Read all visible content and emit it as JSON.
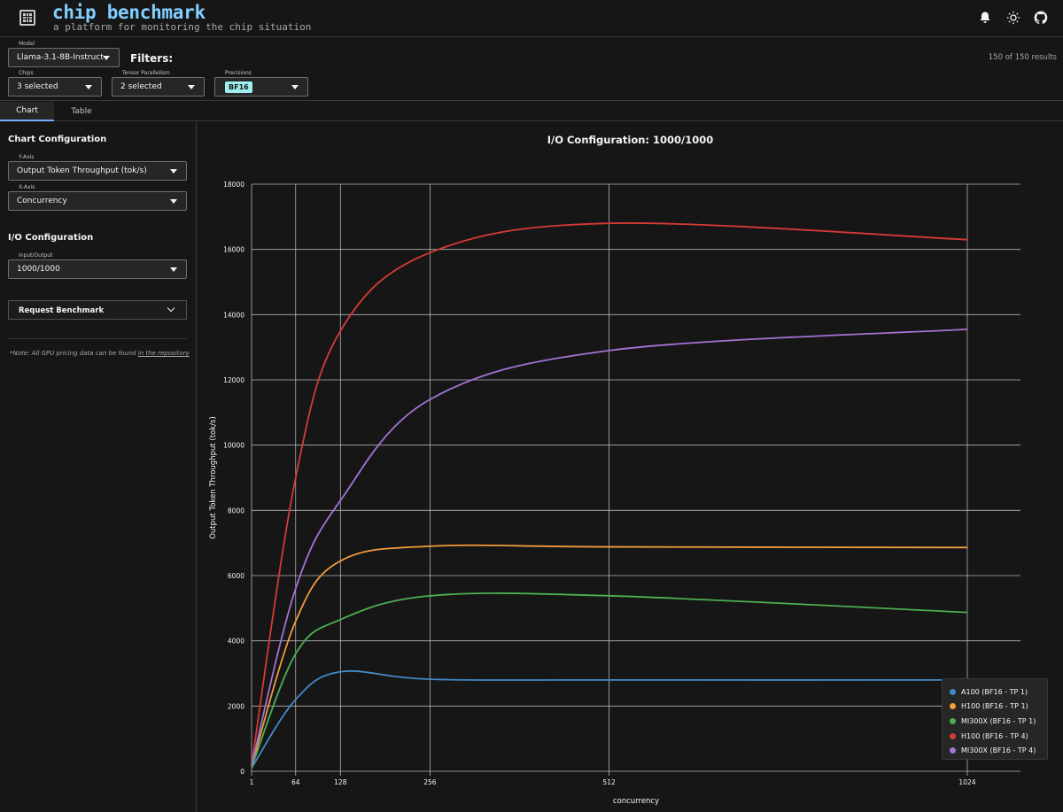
{
  "header": {
    "title": "chip benchmark",
    "subtitle": "a platform for monitoring the chip situation",
    "logo_icon": "chip-grid-icon",
    "icons": [
      "bell-icon",
      "sun-icon",
      "github-icon"
    ]
  },
  "filters": {
    "model": {
      "label": "Model",
      "value": "Llama-3.1-8B-Instruct"
    },
    "title": "Filters:",
    "results": "150 of 150 results",
    "chips": {
      "label": "Chips",
      "value": "3 selected"
    },
    "tensor_parallelism": {
      "label": "Tensor Parallelism",
      "value": "2 selected"
    },
    "precisions": {
      "label": "Precisions",
      "value": "BF16"
    }
  },
  "tabs": [
    {
      "label": "Chart",
      "active": true
    },
    {
      "label": "Table",
      "active": false
    }
  ],
  "sidebar": {
    "chart_config_title": "Chart Configuration",
    "y_axis": {
      "label": "Y-Axis",
      "value": "Output Token Throughput (tok/s)"
    },
    "x_axis": {
      "label": "X-Axis",
      "value": "Concurrency"
    },
    "io_config_title": "I/O Configuration",
    "io": {
      "label": "Input/Output",
      "value": "1000/1000"
    },
    "request_label": "Request Benchmark",
    "note_prefix": "*Note: All GPU pricing data can be found ",
    "note_link": "in the repository"
  },
  "colors": {
    "accent_title": "#82cfff",
    "tab_underline": "#78a9ff",
    "tag": "#9ef0f0"
  },
  "chart_data": {
    "type": "line",
    "title": "I/O Configuration: 1000/1000",
    "xlabel": "concurrency",
    "ylabel": "Output Token Throughput (tok/s)",
    "x_ticks": [
      1,
      64,
      128,
      256,
      512,
      1024
    ],
    "y_ticks": [
      0,
      2000,
      4000,
      6000,
      8000,
      10000,
      12000,
      14000,
      16000,
      18000
    ],
    "xlim": [
      1,
      1100
    ],
    "ylim": [
      0,
      18000
    ],
    "grid": true,
    "legend_position": "bottom-right",
    "series": [
      {
        "name": "A100 (BF16 - TP 1)",
        "color": "#4589c4",
        "x": [
          1,
          64,
          128,
          256,
          512,
          1024
        ],
        "y": [
          100,
          2200,
          3050,
          2820,
          2800,
          2800
        ]
      },
      {
        "name": "H100 (BF16 - TP 1)",
        "color": "#f39c3d",
        "x": [
          1,
          64,
          128,
          256,
          512,
          1024
        ],
        "y": [
          150,
          4600,
          6450,
          6900,
          6880,
          6860
        ]
      },
      {
        "name": "MI300X (BF16 - TP 1)",
        "color": "#4caf50",
        "x": [
          1,
          64,
          128,
          256,
          512,
          1024
        ],
        "y": [
          120,
          3600,
          4650,
          5380,
          5380,
          4870
        ]
      },
      {
        "name": "H100 (BF16 - TP 4)",
        "color": "#d63b36",
        "x": [
          1,
          64,
          128,
          256,
          512,
          1024
        ],
        "y": [
          200,
          9000,
          13500,
          15900,
          16800,
          16300
        ]
      },
      {
        "name": "MI300X (BF16 - TP 4)",
        "color": "#a672d4",
        "x": [
          1,
          64,
          128,
          256,
          512,
          1024
        ],
        "y": [
          180,
          5600,
          8300,
          11400,
          12900,
          13550
        ]
      }
    ]
  }
}
